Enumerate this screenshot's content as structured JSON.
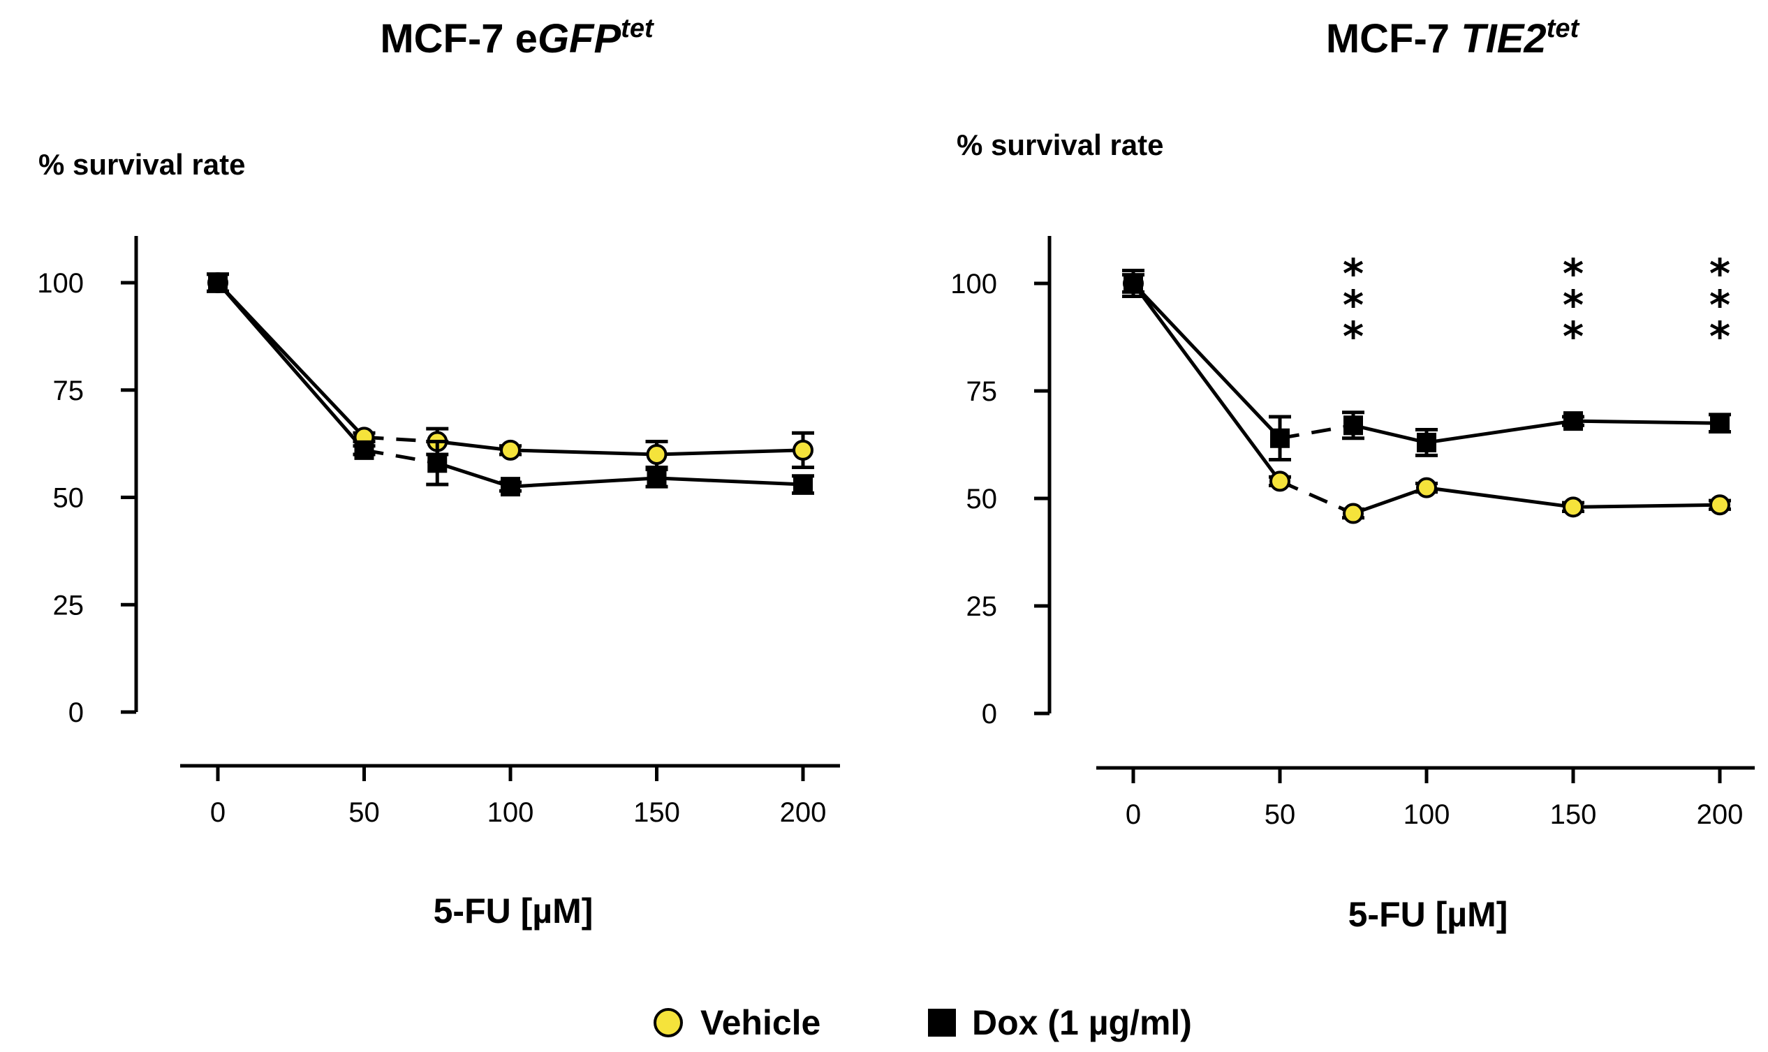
{
  "colors": {
    "vehicle": "#f5e33b",
    "dox": "#000000",
    "axis": "#000000"
  },
  "legend": {
    "vehicle": "Vehicle",
    "dox": "Dox (1 µg/ml)"
  },
  "chart_data": [
    {
      "type": "line",
      "title": "MCF-7 e",
      "title_italic": "GFP",
      "title_sup": "tet",
      "ylabel": "% survival rate",
      "xlabel": "5-FU [µM]",
      "x": [
        0,
        50,
        75,
        100,
        150,
        200
      ],
      "xticks": [
        "0",
        "50",
        "100",
        "150",
        "200"
      ],
      "xtick_values": [
        0,
        50,
        100,
        150,
        200
      ],
      "yticks": [
        "0",
        "25",
        "50",
        "75",
        "100"
      ],
      "ytick_values": [
        0,
        25,
        50,
        75,
        100
      ],
      "ylim": [
        0,
        110
      ],
      "xlim": [
        -12,
        212
      ],
      "series": [
        {
          "name": "Vehicle",
          "marker": "circle",
          "values": [
            100,
            64,
            63,
            61,
            60,
            61
          ],
          "errors": [
            2,
            1,
            3,
            1,
            3,
            4
          ]
        },
        {
          "name": "Dox (1 µg/ml)",
          "marker": "square",
          "values": [
            100,
            61,
            58,
            52.5,
            54.5,
            53
          ],
          "errors": [
            2,
            1,
            5,
            1,
            2,
            2
          ]
        }
      ],
      "significance": []
    },
    {
      "type": "line",
      "title": "MCF-7 ",
      "title_italic": "TIE2",
      "title_sup": "tet",
      "ylabel": "% survival rate",
      "xlabel": "5-FU [µM]",
      "x": [
        0,
        50,
        75,
        100,
        150,
        200
      ],
      "xticks": [
        "0",
        "50",
        "100",
        "150",
        "200"
      ],
      "xtick_values": [
        0,
        50,
        100,
        150,
        200
      ],
      "yticks": [
        "0",
        "25",
        "50",
        "75",
        "100"
      ],
      "ytick_values": [
        0,
        25,
        50,
        75,
        100
      ],
      "ylim": [
        0,
        110
      ],
      "xlim": [
        -12,
        212
      ],
      "series": [
        {
          "name": "Vehicle",
          "marker": "circle",
          "values": [
            100,
            54,
            46.5,
            52.5,
            48,
            48.5
          ],
          "errors": [
            2,
            1,
            1,
            1,
            1,
            1
          ]
        },
        {
          "name": "Dox (1 µg/ml)",
          "marker": "square",
          "values": [
            100,
            64,
            67,
            63,
            68,
            67.5
          ],
          "errors": [
            3,
            5,
            3,
            3,
            1,
            2
          ]
        }
      ],
      "significance": [
        {
          "x": 75,
          "label": "***"
        },
        {
          "x": 150,
          "label": "***"
        },
        {
          "x": 200,
          "label": "***"
        }
      ]
    }
  ]
}
